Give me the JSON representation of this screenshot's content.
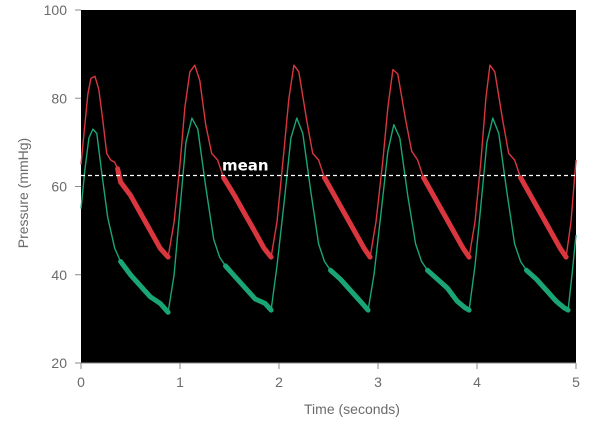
{
  "chart_data": {
    "type": "line",
    "xlabel": "Time (seconds)",
    "ylabel": "Pressure (mmHg)",
    "xlim": [
      0,
      5
    ],
    "ylim": [
      20,
      100
    ],
    "xticks": [
      "0",
      "1",
      "2",
      "3",
      "4",
      "5"
    ],
    "yticks": [
      "20",
      "40",
      "60",
      "80",
      "100"
    ],
    "plot_background": "#000000",
    "grid": false,
    "mean_line": {
      "label": "mean",
      "y": 62.5,
      "color": "#ffffff",
      "style": "dashed"
    },
    "series": [
      {
        "color": "#d9363e",
        "points": [
          [
            0.0,
            65
          ],
          [
            0.03,
            72
          ],
          [
            0.07,
            81
          ],
          [
            0.1,
            84.5
          ],
          [
            0.14,
            85
          ],
          [
            0.18,
            82
          ],
          [
            0.22,
            75
          ],
          [
            0.26,
            67.5
          ],
          [
            0.3,
            66
          ],
          [
            0.34,
            65.5
          ],
          [
            0.37,
            64
          ],
          [
            0.4,
            61
          ],
          [
            0.5,
            58
          ],
          [
            0.6,
            54
          ],
          [
            0.7,
            50
          ],
          [
            0.8,
            46
          ],
          [
            0.88,
            44
          ],
          [
            0.94,
            52
          ],
          [
            1.0,
            65
          ],
          [
            1.05,
            78
          ],
          [
            1.1,
            86
          ],
          [
            1.15,
            87.5
          ],
          [
            1.2,
            84
          ],
          [
            1.26,
            74
          ],
          [
            1.32,
            67.5
          ],
          [
            1.38,
            66
          ],
          [
            1.44,
            62
          ],
          [
            1.55,
            58
          ],
          [
            1.65,
            54
          ],
          [
            1.75,
            50
          ],
          [
            1.85,
            46
          ],
          [
            1.92,
            44
          ],
          [
            1.98,
            52
          ],
          [
            2.05,
            68
          ],
          [
            2.1,
            80
          ],
          [
            2.15,
            87.5
          ],
          [
            2.2,
            86
          ],
          [
            2.28,
            75
          ],
          [
            2.34,
            67.5
          ],
          [
            2.4,
            66
          ],
          [
            2.46,
            62
          ],
          [
            2.56,
            58
          ],
          [
            2.66,
            54
          ],
          [
            2.76,
            50
          ],
          [
            2.86,
            46
          ],
          [
            2.92,
            44
          ],
          [
            2.98,
            52
          ],
          [
            3.05,
            66
          ],
          [
            3.1,
            78
          ],
          [
            3.15,
            86.5
          ],
          [
            3.2,
            85.5
          ],
          [
            3.28,
            75
          ],
          [
            3.34,
            68
          ],
          [
            3.4,
            66
          ],
          [
            3.46,
            62
          ],
          [
            3.56,
            58
          ],
          [
            3.66,
            54
          ],
          [
            3.76,
            50
          ],
          [
            3.86,
            46
          ],
          [
            3.92,
            44
          ],
          [
            3.98,
            52
          ],
          [
            4.04,
            66
          ],
          [
            4.09,
            80
          ],
          [
            4.13,
            87.5
          ],
          [
            4.18,
            86
          ],
          [
            4.26,
            75
          ],
          [
            4.32,
            67.5
          ],
          [
            4.38,
            66
          ],
          [
            4.44,
            62
          ],
          [
            4.54,
            58
          ],
          [
            4.64,
            54
          ],
          [
            4.74,
            50
          ],
          [
            4.84,
            46
          ],
          [
            4.9,
            44
          ],
          [
            4.95,
            52
          ],
          [
            5.0,
            66
          ]
        ]
      },
      {
        "color": "#1aa574",
        "points": [
          [
            0.0,
            55
          ],
          [
            0.04,
            64
          ],
          [
            0.08,
            71
          ],
          [
            0.12,
            73
          ],
          [
            0.16,
            72
          ],
          [
            0.21,
            63
          ],
          [
            0.27,
            53
          ],
          [
            0.34,
            46
          ],
          [
            0.4,
            43
          ],
          [
            0.5,
            40
          ],
          [
            0.6,
            37.5
          ],
          [
            0.7,
            35
          ],
          [
            0.8,
            33.5
          ],
          [
            0.88,
            31.5
          ],
          [
            0.94,
            40
          ],
          [
            1.0,
            55
          ],
          [
            1.06,
            70
          ],
          [
            1.12,
            75.5
          ],
          [
            1.18,
            73
          ],
          [
            1.26,
            60
          ],
          [
            1.34,
            48
          ],
          [
            1.4,
            44
          ],
          [
            1.46,
            42
          ],
          [
            1.56,
            39.5
          ],
          [
            1.66,
            37
          ],
          [
            1.76,
            34.5
          ],
          [
            1.86,
            33.5
          ],
          [
            1.92,
            32
          ],
          [
            1.98,
            42
          ],
          [
            2.06,
            58
          ],
          [
            2.12,
            71
          ],
          [
            2.18,
            75.5
          ],
          [
            2.24,
            72
          ],
          [
            2.32,
            59
          ],
          [
            2.4,
            47
          ],
          [
            2.46,
            43
          ],
          [
            2.52,
            41
          ],
          [
            2.62,
            39
          ],
          [
            2.72,
            36.5
          ],
          [
            2.82,
            34
          ],
          [
            2.9,
            32
          ],
          [
            2.96,
            40
          ],
          [
            3.04,
            56
          ],
          [
            3.1,
            68
          ],
          [
            3.16,
            74
          ],
          [
            3.22,
            71
          ],
          [
            3.3,
            58
          ],
          [
            3.38,
            47
          ],
          [
            3.44,
            43
          ],
          [
            3.5,
            41
          ],
          [
            3.6,
            39
          ],
          [
            3.7,
            37
          ],
          [
            3.8,
            34
          ],
          [
            3.88,
            32.5
          ],
          [
            3.92,
            32
          ],
          [
            3.98,
            42
          ],
          [
            4.04,
            56
          ],
          [
            4.1,
            70
          ],
          [
            4.16,
            75.5
          ],
          [
            4.22,
            72
          ],
          [
            4.3,
            59
          ],
          [
            4.38,
            47
          ],
          [
            4.44,
            43
          ],
          [
            4.5,
            41
          ],
          [
            4.6,
            39
          ],
          [
            4.7,
            36.5
          ],
          [
            4.8,
            34
          ],
          [
            4.88,
            32.5
          ],
          [
            4.92,
            32
          ],
          [
            4.96,
            40
          ],
          [
            5.0,
            49
          ]
        ]
      }
    ]
  }
}
